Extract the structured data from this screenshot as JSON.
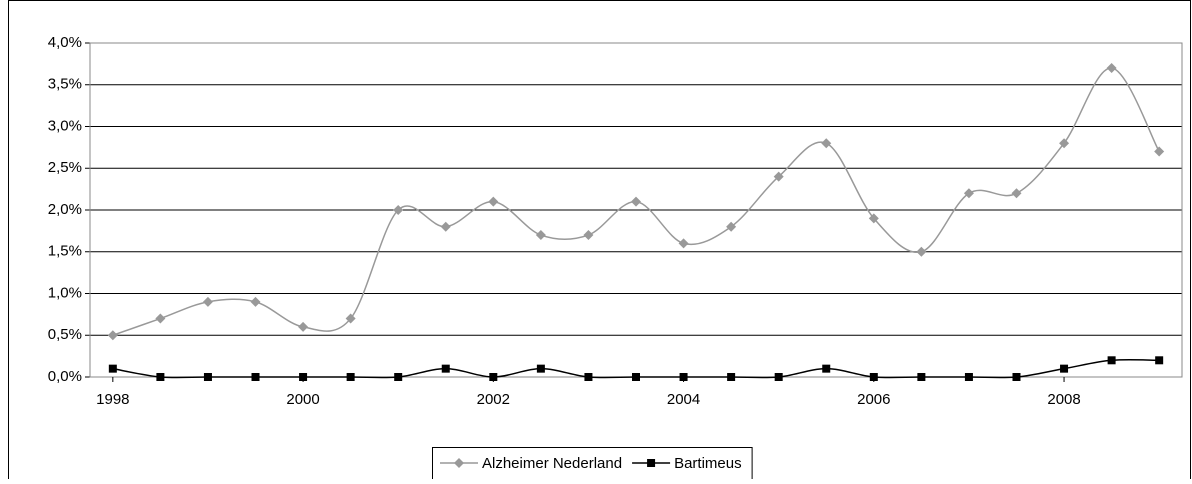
{
  "chart_data": {
    "type": "line",
    "x": [
      1998,
      1998.5,
      1999,
      1999.5,
      2000,
      2000.5,
      2001,
      2001.5,
      2002,
      2002.5,
      2003,
      2003.5,
      2004,
      2004.5,
      2005,
      2005.5,
      2006,
      2006.5,
      2007,
      2007.5,
      2008,
      2008.5,
      2009
    ],
    "series": [
      {
        "name": "Alzheimer Nederland",
        "color": "#999999",
        "marker": "diamond",
        "values": [
          0.5,
          0.7,
          0.9,
          0.9,
          0.6,
          0.7,
          2.0,
          1.8,
          2.1,
          1.7,
          1.7,
          2.1,
          1.6,
          1.8,
          2.4,
          2.8,
          1.9,
          1.5,
          2.2,
          2.2,
          2.8,
          3.7,
          2.7
        ]
      },
      {
        "name": "Bartimeus",
        "color": "#000000",
        "marker": "square",
        "values": [
          0.1,
          0,
          0,
          0,
          0,
          0,
          0,
          0.1,
          0,
          0.1,
          0,
          0,
          0,
          0,
          0,
          0.1,
          0,
          0,
          0,
          0,
          0.1,
          0.2,
          0.2
        ]
      }
    ],
    "xlim": [
      1997.76,
      2009.24
    ],
    "xticks": [
      1998,
      2000,
      2002,
      2004,
      2006,
      2008
    ],
    "ylim": [
      0,
      4
    ],
    "yticks": [
      {
        "value": 0,
        "label": "0,0%"
      },
      {
        "value": 0.5,
        "label": "0,5%"
      },
      {
        "value": 1,
        "label": "1,0%"
      },
      {
        "value": 1.5,
        "label": "1,5%"
      },
      {
        "value": 2,
        "label": "2,0%"
      },
      {
        "value": 2.5,
        "label": "2,5%"
      },
      {
        "value": 3,
        "label": "3,0%"
      },
      {
        "value": 3.5,
        "label": "3,5%"
      },
      {
        "value": 4,
        "label": "4,0%"
      }
    ],
    "grid": true,
    "smooth": true,
    "legend": "bottom"
  }
}
